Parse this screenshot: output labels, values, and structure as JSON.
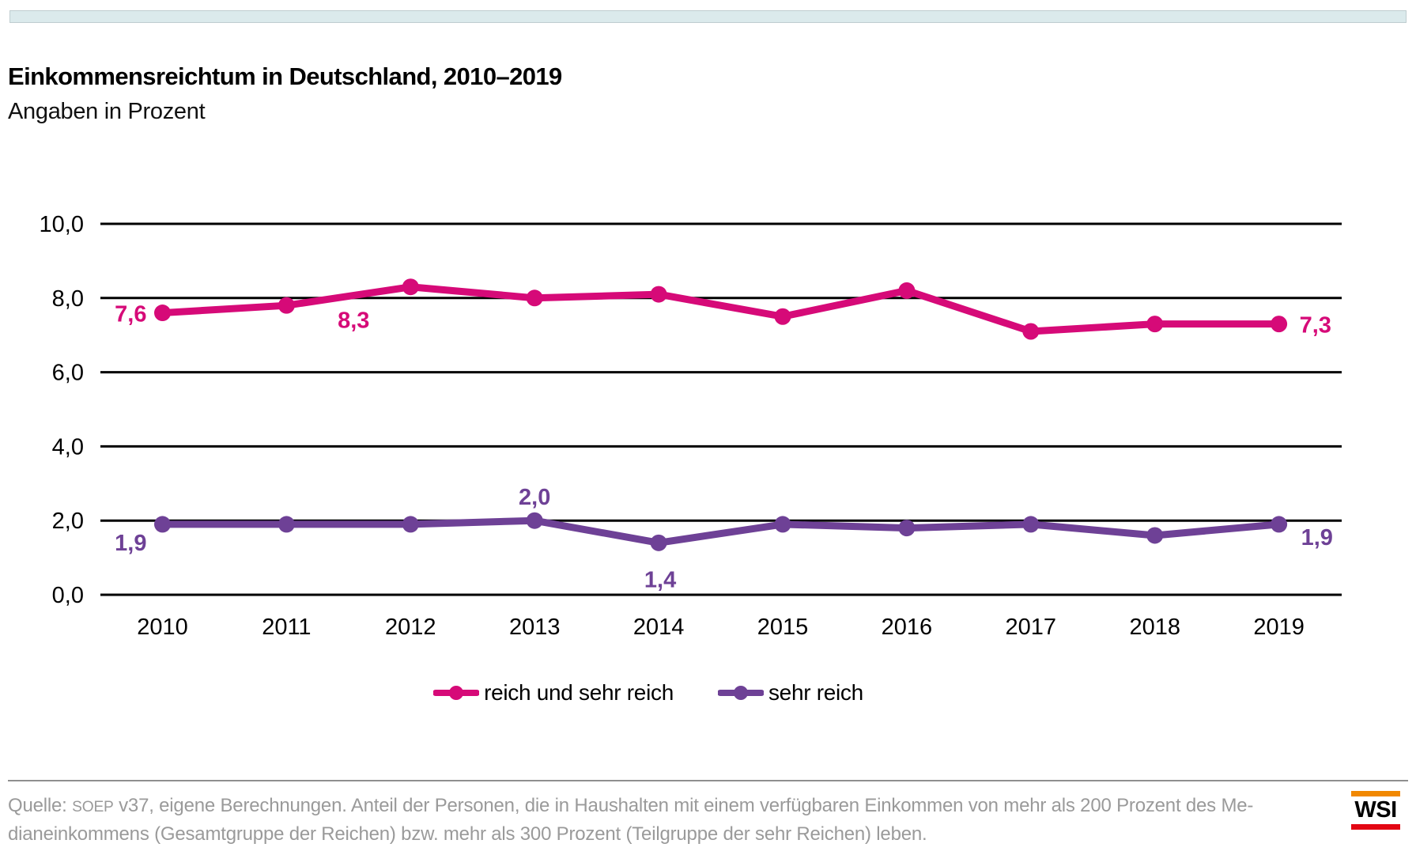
{
  "topbar": {
    "color": "#dbeaec"
  },
  "header": {
    "title": "Einkommensreichtum in Deutschland, 2010–2019",
    "subtitle": "Angaben in Prozent"
  },
  "chart_data": {
    "type": "line",
    "title": "Einkommensreichtum in Deutschland, 2010–2019",
    "subtitle": "Angaben in Prozent",
    "categories": [
      "2010",
      "2011",
      "2012",
      "2013",
      "2014",
      "2015",
      "2016",
      "2017",
      "2018",
      "2019"
    ],
    "series": [
      {
        "name": "reich und sehr reich",
        "color": "#d60a78",
        "values": [
          7.6,
          7.8,
          8.3,
          8.0,
          8.1,
          7.5,
          8.2,
          7.1,
          7.3,
          7.3
        ],
        "annotations": [
          {
            "index": 0,
            "text": "7,6",
            "placement": "left"
          },
          {
            "index": 2,
            "text": "8,3",
            "placement": "below-left"
          },
          {
            "index": 9,
            "text": "7,3",
            "placement": "right"
          }
        ]
      },
      {
        "name": "sehr reich",
        "color": "#6e4196",
        "values": [
          1.9,
          1.9,
          1.9,
          2.0,
          1.4,
          1.9,
          1.8,
          1.9,
          1.6,
          1.9
        ],
        "annotations": [
          {
            "index": 0,
            "text": "1,9",
            "placement": "left-low"
          },
          {
            "index": 3,
            "text": "2,0",
            "placement": "above"
          },
          {
            "index": 4,
            "text": "1,4",
            "placement": "below"
          },
          {
            "index": 9,
            "text": "1,9",
            "placement": "right-low"
          }
        ]
      }
    ],
    "ylim": [
      0,
      10
    ],
    "yticks": [
      "0,0",
      "2,0",
      "4,0",
      "6,0",
      "8,0",
      "10,0"
    ],
    "grid": "horizontal",
    "legend_position": "bottom-center"
  },
  "footer": {
    "line1_prefix": "Quelle: ",
    "line1_soep": "SOEP",
    "line1_rest": " v37, eigene Berechnungen. Anteil der Personen, die in Haushalten mit einem verfügbaren Einkommen von mehr als 200 Prozent des Me-",
    "line2": "dianeinkommens (Gesamtgruppe der Reichen) bzw. mehr als 300 Prozent (Teilgruppe der sehr Reichen) leben.",
    "text_color": "#9a9a9a"
  },
  "logo": {
    "text": "WSI",
    "top_bar_color": "#f18800",
    "bottom_bar_color": "#e30613"
  }
}
